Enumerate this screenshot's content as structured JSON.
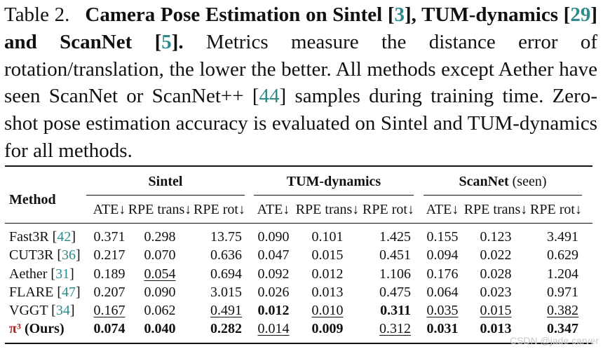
{
  "caption": {
    "label": "Table 2.",
    "title_a": "Camera Pose Estimation on Sintel [",
    "cite_sintel": "3",
    "title_b": "], TUM-dynamics [",
    "cite_tum": "29",
    "title_c": "] and ScanNet [",
    "cite_scannet": "5",
    "title_d": "].",
    "body_a": " Metrics measure the distance error of rotation/translation, the lower the better. All methods except Aether have seen ScanNet or ScanNet++ [",
    "cite_scannetpp": "44",
    "body_b": "] samples during training time. Zero-shot pose estimation accuracy is evaluated on Sintel and TUM-dynamics for all methods."
  },
  "table": {
    "method_header": "Method",
    "groups": [
      {
        "name": "Sintel",
        "note": ""
      },
      {
        "name": "TUM-dynamics",
        "note": ""
      },
      {
        "name": "ScanNet",
        "note": " (seen)"
      }
    ],
    "metrics": [
      "ATE↓",
      "RPE trans↓",
      "RPE rot↓",
      "ATE↓",
      "RPE trans↓",
      "RPE rot↓",
      "ATE↓",
      "RPE trans↓",
      "RPE rot↓"
    ],
    "rows": [
      {
        "method": "Fast3R [",
        "cite": "42",
        "method_end": "]",
        "values": [
          "0.371",
          "0.298",
          "13.75",
          "0.090",
          "0.101",
          "1.425",
          "0.155",
          "0.123",
          "3.491"
        ],
        "style": [
          "",
          "",
          "",
          "",
          "",
          "",
          "",
          "",
          ""
        ]
      },
      {
        "method": "CUT3R [",
        "cite": "36",
        "method_end": "]",
        "values": [
          "0.217",
          "0.070",
          "0.636",
          "0.047",
          "0.015",
          "0.451",
          "0.094",
          "0.022",
          "0.629"
        ],
        "style": [
          "",
          "",
          "",
          "",
          "",
          "",
          "",
          "",
          ""
        ]
      },
      {
        "method": "Aether [",
        "cite": "31",
        "method_end": "]",
        "values": [
          "0.189",
          "0.054",
          "0.694",
          "0.092",
          "0.012",
          "1.106",
          "0.176",
          "0.028",
          "1.204"
        ],
        "style": [
          "",
          "ul",
          "",
          "",
          "",
          "",
          "",
          "",
          ""
        ]
      },
      {
        "method": "FLARE [",
        "cite": "47",
        "method_end": "]",
        "values": [
          "0.207",
          "0.090",
          "3.015",
          "0.026",
          "0.013",
          "0.475",
          "0.064",
          "0.023",
          "0.971"
        ],
        "style": [
          "",
          "",
          "",
          "",
          "",
          "",
          "",
          "",
          ""
        ]
      },
      {
        "method": "VGGT [",
        "cite": "34",
        "method_end": "]",
        "values": [
          "0.167",
          "0.062",
          "0.491",
          "0.012",
          "0.010",
          "0.311",
          "0.035",
          "0.015",
          "0.382"
        ],
        "style": [
          "ul",
          "",
          "ul",
          "bold",
          "ul",
          "bold",
          "ul",
          "ul",
          "ul"
        ]
      },
      {
        "method": "π³ (Ours)",
        "cite": "",
        "method_end": "",
        "values": [
          "0.074",
          "0.040",
          "0.282",
          "0.014",
          "0.009",
          "0.312",
          "0.031",
          "0.013",
          "0.347"
        ],
        "style": [
          "bold",
          "bold",
          "bold",
          "ul",
          "bold",
          "ul",
          "bold",
          "bold",
          "bold"
        ]
      }
    ]
  },
  "watermark": "CSDN @jade carver"
}
